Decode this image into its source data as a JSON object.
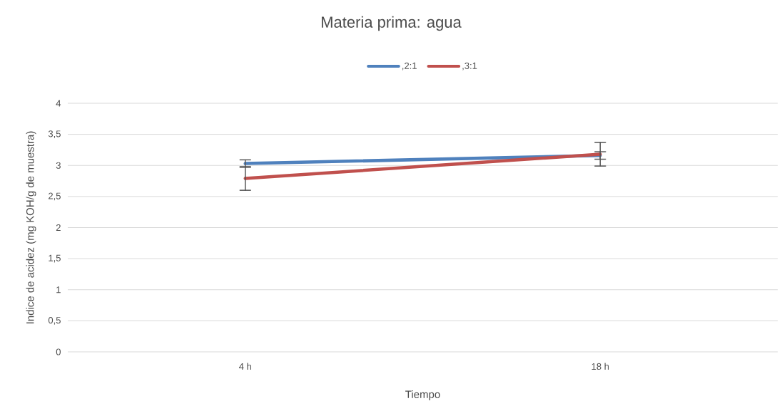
{
  "chart_data": {
    "type": "line",
    "title": "Materia prima: agua",
    "xlabel": "Tiempo",
    "ylabel": "Indice de acidez (mg KOH/g de muestra)",
    "categories": [
      "4 h",
      "18 h"
    ],
    "series": [
      {
        "name": ",2:1",
        "color": "#4f81bd",
        "values": [
          3.03,
          3.16
        ],
        "errors": [
          0.06,
          0.06
        ]
      },
      {
        "name": ",3:1",
        "color": "#c0504d",
        "values": [
          2.79,
          3.18
        ],
        "errors": [
          0.19,
          0.19
        ]
      }
    ],
    "ylim": [
      0,
      4
    ],
    "yticks": [
      0,
      {
        "value": 0.5,
        "label": "0,5"
      },
      1,
      {
        "value": 1.5,
        "label": "1,5"
      },
      2,
      {
        "value": 2.5,
        "label": "2,5"
      },
      3,
      {
        "value": 3.5,
        "label": "3,5"
      },
      4
    ],
    "grid": "y",
    "legend": "top",
    "marker": "none",
    "line_style": "solid"
  }
}
